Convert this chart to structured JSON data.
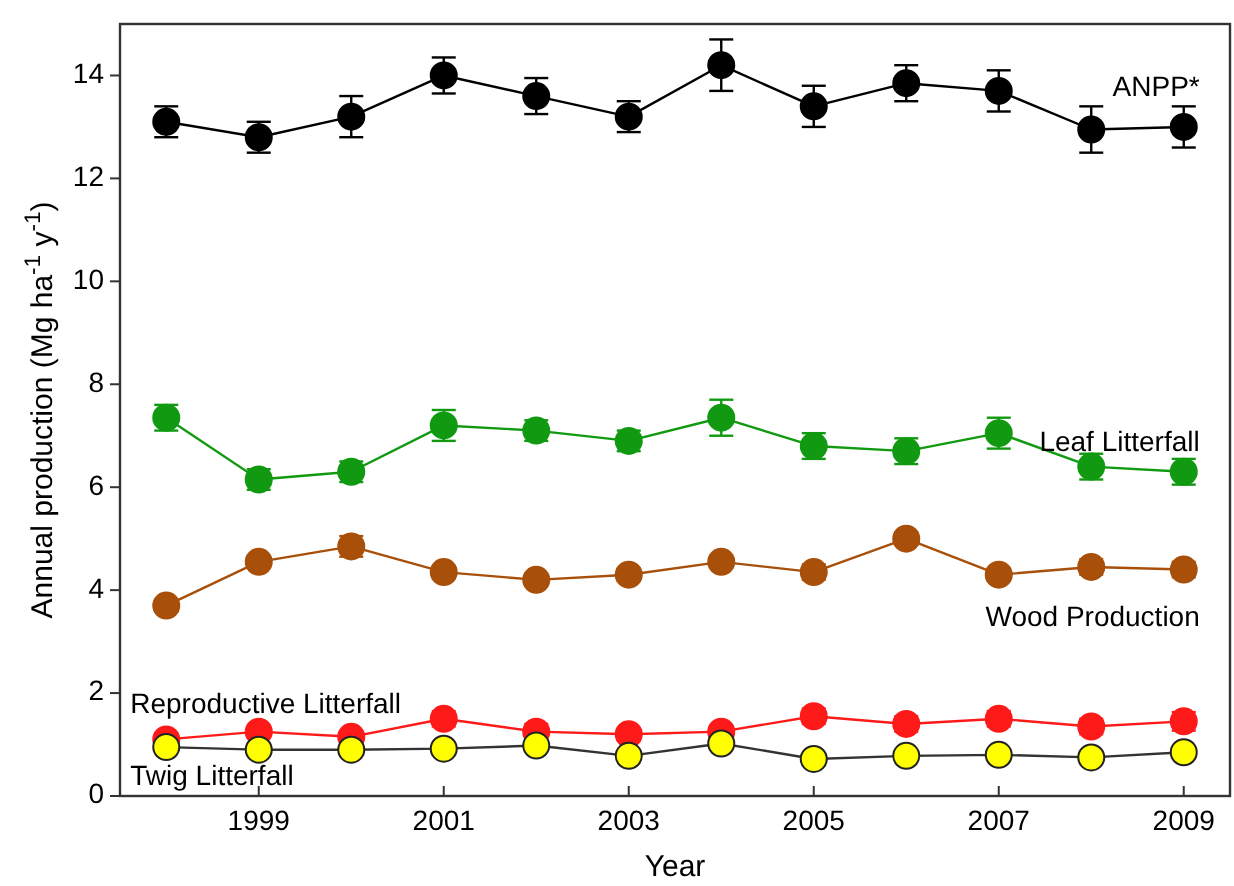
{
  "chart_data": {
    "type": "line",
    "xlabel": "Year",
    "ylabel": "Annual production (Mg ha$^{-1}$ y$^{-1}$)",
    "x": [
      1998,
      1999,
      2000,
      2001,
      2002,
      2003,
      2004,
      2005,
      2006,
      2007,
      2008,
      2009
    ],
    "xlim": [
      1997.5,
      2009.5
    ],
    "xticks": [
      1999,
      2001,
      2003,
      2005,
      2007,
      2009
    ],
    "ylim": [
      0,
      15
    ],
    "yticks": [
      0,
      2,
      4,
      6,
      8,
      10,
      12,
      14
    ],
    "marker": "circle",
    "grid": false,
    "series": [
      {
        "name": "ANPP*",
        "color": "#000000",
        "values": [
          13.1,
          12.8,
          13.2,
          14.0,
          13.6,
          13.2,
          14.2,
          13.4,
          13.85,
          13.7,
          12.95,
          13.0
        ],
        "errors": [
          0.3,
          0.3,
          0.4,
          0.35,
          0.35,
          0.3,
          0.5,
          0.4,
          0.35,
          0.4,
          0.45,
          0.4
        ]
      },
      {
        "name": "Leaf Litterfall",
        "color": "#119a11",
        "values": [
          7.35,
          6.15,
          6.3,
          7.2,
          7.1,
          6.9,
          7.35,
          6.8,
          6.7,
          7.05,
          6.4,
          6.3
        ],
        "errors": [
          0.25,
          0.2,
          0.2,
          0.3,
          0.2,
          0.2,
          0.35,
          0.25,
          0.25,
          0.3,
          0.25,
          0.25
        ]
      },
      {
        "name": "Wood Production",
        "color": "#a84f0a",
        "values": [
          3.7,
          4.55,
          4.85,
          4.35,
          4.2,
          4.3,
          4.55,
          4.35,
          5.0,
          4.3,
          4.45,
          4.4
        ],
        "errors": [
          0.12,
          0.12,
          0.2,
          0.12,
          0.12,
          0.12,
          0.12,
          0.15,
          0.12,
          0.12,
          0.15,
          0.15
        ]
      },
      {
        "name": "Reproductive Litterfall",
        "color": "#ff1a1a",
        "values": [
          1.1,
          1.25,
          1.15,
          1.5,
          1.25,
          1.2,
          1.25,
          1.55,
          1.4,
          1.5,
          1.35,
          1.45
        ],
        "errors": [
          0.1,
          0.1,
          0.1,
          0.15,
          0.15,
          0.12,
          0.1,
          0.15,
          0.15,
          0.15,
          0.15,
          0.18
        ]
      },
      {
        "name": "Twig Litterfall",
        "color": "#ffff00",
        "values": [
          0.95,
          0.9,
          0.9,
          0.92,
          0.98,
          0.78,
          1.02,
          0.72,
          0.78,
          0.8,
          0.75,
          0.85
        ]
      }
    ]
  }
}
